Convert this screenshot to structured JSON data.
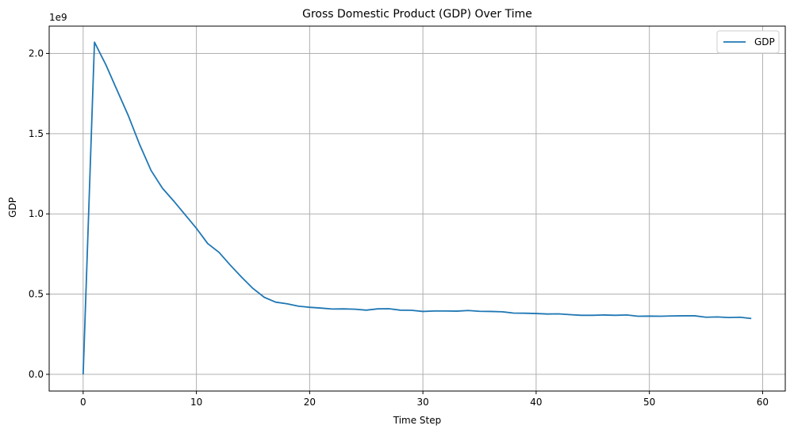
{
  "chart_data": {
    "type": "line",
    "title": "Gross Domestic Product (GDP) Over Time",
    "xlabel": "Time Step",
    "ylabel": "GDP",
    "y_scale_label": "1e9",
    "xlim": [
      -3,
      62
    ],
    "ylim": [
      -0.104,
      2.17
    ],
    "x_ticks": [
      0,
      10,
      20,
      30,
      40,
      50,
      60
    ],
    "x_tick_labels": [
      "0",
      "10",
      "20",
      "30",
      "40",
      "50",
      "60"
    ],
    "y_ticks": [
      0.0,
      0.5,
      1.0,
      1.5,
      2.0
    ],
    "y_tick_labels": [
      "0.0",
      "0.5",
      "1.0",
      "1.5",
      "2.0"
    ],
    "grid": true,
    "legend_position": "top-right",
    "series": [
      {
        "name": "GDP",
        "color": "#1f77b4",
        "x": [
          0,
          1,
          2,
          3,
          4,
          5,
          6,
          7,
          8,
          9,
          10,
          11,
          12,
          13,
          14,
          15,
          16,
          17,
          18,
          19,
          20,
          21,
          22,
          23,
          24,
          25,
          26,
          27,
          28,
          29,
          30,
          31,
          32,
          33,
          34,
          35,
          36,
          37,
          38,
          39,
          40,
          41,
          42,
          43,
          44,
          45,
          46,
          47,
          48,
          49,
          50,
          51,
          52,
          53,
          54,
          55,
          56,
          57,
          58,
          59
        ],
        "y": [
          0.0,
          2.07,
          1.93,
          1.77,
          1.61,
          1.43,
          1.27,
          1.16,
          1.08,
          0.995,
          0.91,
          0.815,
          0.76,
          0.68,
          0.605,
          0.535,
          0.48,
          0.45,
          0.44,
          0.425,
          0.418,
          0.413,
          0.407,
          0.408,
          0.406,
          0.4,
          0.408,
          0.409,
          0.4,
          0.399,
          0.392,
          0.395,
          0.395,
          0.394,
          0.398,
          0.393,
          0.392,
          0.39,
          0.382,
          0.381,
          0.379,
          0.376,
          0.377,
          0.372,
          0.368,
          0.368,
          0.37,
          0.368,
          0.37,
          0.362,
          0.363,
          0.362,
          0.364,
          0.365,
          0.365,
          0.356,
          0.358,
          0.354,
          0.356,
          0.348
        ]
      }
    ]
  }
}
